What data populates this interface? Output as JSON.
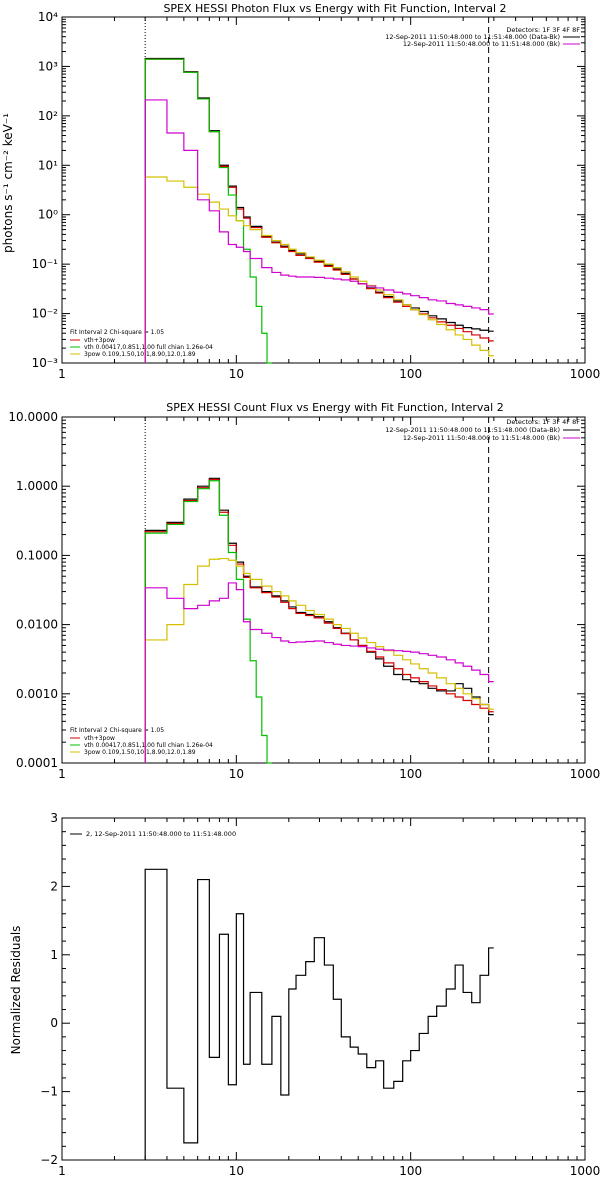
{
  "chart_data": [
    {
      "type": "line",
      "title": "SPEX HESSI Photon Flux vs Energy with Fit Function, Interval 2",
      "xlabel": "",
      "ylabel": "photons s⁻¹ cm⁻² keV⁻¹",
      "xscale": "log",
      "yscale": "log",
      "xlim": [
        1,
        1000
      ],
      "ylim": [
        0.001,
        10000
      ],
      "x_ticks": [
        "1",
        "10",
        "100",
        "1000"
      ],
      "y_ticks": [
        "10⁻³",
        "10⁻²",
        "10⁻¹",
        "10⁰",
        "10¹",
        "10²",
        "10³",
        "10⁴"
      ],
      "vlines": [
        {
          "x": 3.0,
          "style": "dotted"
        },
        {
          "x": 280,
          "style": "dashed"
        }
      ],
      "info_lines": [
        "Detectors: 1F 3F 4F 8F",
        "12-Sep-2011 11:50:48.000 to 11:51:48.000 (Data-Bk)",
        "12-Sep-2011 11:50:48.000 to 11:51:48.000 (Bk)"
      ],
      "legend_lines": [
        "Fit Interval 2   Chi-square = 1.05",
        "vth+3pow",
        "vth 0.00417,0.851,1.00  full chian 1.26e-04",
        "3pow 0.109,1.50,10.1,8.90,12.0,1.89"
      ],
      "series": [
        {
          "color": "#000000",
          "x": [
            3,
            4,
            5,
            6,
            7,
            8,
            9,
            10,
            11,
            12,
            14,
            16,
            18,
            20,
            22,
            25,
            28,
            32,
            36,
            40,
            45,
            50,
            56,
            63,
            70,
            80,
            90,
            100,
            112,
            126,
            141,
            160,
            180,
            200,
            224,
            250,
            280
          ],
          "values": [
            1450,
            1450,
            780,
            230,
            50,
            10,
            3.8,
            1.4,
            0.9,
            0.58,
            0.36,
            0.28,
            0.23,
            0.19,
            0.16,
            0.135,
            0.115,
            0.095,
            0.08,
            0.065,
            0.05,
            0.04,
            0.033,
            0.027,
            0.022,
            0.018,
            0.015,
            0.013,
            0.011,
            0.009,
            0.0078,
            0.0066,
            0.0058,
            0.0052,
            0.0049,
            0.0046,
            0.0044
          ]
        },
        {
          "color": "#d40000",
          "x": [
            3,
            4,
            5,
            6,
            7,
            8,
            9,
            10,
            11,
            12,
            14,
            16,
            18,
            20,
            22,
            25,
            28,
            32,
            36,
            40,
            45,
            50,
            56,
            63,
            70,
            80,
            90,
            100,
            112,
            126,
            141,
            160,
            180,
            200,
            224,
            250,
            280
          ],
          "values": [
            1400,
            1400,
            760,
            220,
            48,
            9.5,
            3.6,
            1.3,
            0.85,
            0.55,
            0.35,
            0.27,
            0.22,
            0.18,
            0.15,
            0.13,
            0.11,
            0.09,
            0.076,
            0.062,
            0.05,
            0.04,
            0.032,
            0.026,
            0.021,
            0.017,
            0.014,
            0.012,
            0.0098,
            0.0082,
            0.0068,
            0.0058,
            0.005,
            0.0043,
            0.0037,
            0.0032,
            0.0028
          ]
        },
        {
          "color": "#00c000",
          "x": [
            3,
            4,
            5,
            6,
            7,
            8,
            9,
            10,
            11,
            12,
            13,
            14,
            15
          ],
          "values": [
            1400,
            1400,
            760,
            220,
            48,
            9,
            2.5,
            0.75,
            0.2,
            0.055,
            0.014,
            0.004,
            0.001
          ]
        },
        {
          "color": "#d4c000",
          "x": [
            3,
            4,
            5,
            6,
            7,
            8,
            9,
            10,
            11,
            12,
            14,
            16,
            18,
            20,
            22,
            25,
            28,
            32,
            36,
            40,
            45,
            50,
            56,
            63,
            70,
            80,
            90,
            100,
            112,
            126,
            141,
            160,
            180,
            200,
            224,
            250,
            280
          ],
          "values": [
            5.8,
            4.8,
            3.6,
            2.6,
            1.8,
            1.3,
            0.95,
            0.75,
            0.6,
            0.5,
            0.38,
            0.3,
            0.25,
            0.2,
            0.17,
            0.14,
            0.12,
            0.1,
            0.085,
            0.07,
            0.055,
            0.045,
            0.037,
            0.03,
            0.024,
            0.019,
            0.015,
            0.012,
            0.0095,
            0.0075,
            0.006,
            0.0047,
            0.0037,
            0.003,
            0.0023,
            0.0018,
            0.0014
          ]
        },
        {
          "color": "#d000d0",
          "x": [
            3,
            4,
            5,
            6,
            7,
            8,
            9,
            10,
            11,
            12,
            14,
            16,
            18,
            20,
            22,
            25,
            28,
            32,
            36,
            40,
            45,
            50,
            56,
            63,
            70,
            80,
            90,
            100,
            112,
            126,
            141,
            160,
            180,
            200,
            224,
            250,
            280
          ],
          "values": [
            210,
            45,
            20,
            2.0,
            1.2,
            0.45,
            0.25,
            0.22,
            0.18,
            0.13,
            0.085,
            0.068,
            0.06,
            0.057,
            0.055,
            0.055,
            0.054,
            0.052,
            0.05,
            0.048,
            0.045,
            0.04,
            0.036,
            0.033,
            0.03,
            0.027,
            0.025,
            0.023,
            0.021,
            0.019,
            0.018,
            0.016,
            0.015,
            0.014,
            0.013,
            0.012,
            0.0098
          ]
        }
      ]
    },
    {
      "type": "line",
      "title": "SPEX HESSI Count Flux vs Energy with Fit Function, Interval 2",
      "xlabel": "",
      "ylabel": "",
      "xscale": "log",
      "yscale": "log",
      "xlim": [
        1,
        1000
      ],
      "ylim": [
        0.0001,
        10
      ],
      "x_ticks": [
        "1",
        "10",
        "100",
        "1000"
      ],
      "y_ticks": [
        "0.0001",
        "0.0010",
        "0.0100",
        "0.1000",
        "1.0000",
        "10.0000"
      ],
      "vlines": [
        {
          "x": 3.0,
          "style": "dotted"
        },
        {
          "x": 280,
          "style": "dashed"
        }
      ],
      "info_lines": [
        "Detectors: 1F 3F 4F 8F",
        "12-Sep-2011 11:50:48.000 to 11:51:48.000 (Data-Bk)",
        "12-Sep-2011 11:50:48.000 to 11:51:48.000 (Bk)"
      ],
      "legend_lines": [
        "Fit Interval 2   Chi-square = 1.05",
        "vth+3pow",
        "vth 0.00417,0.851,1.00  full chian 1.26e-04",
        "3pow 0.109,1.50,10.1,8.90,12.0,1.89"
      ],
      "series": [
        {
          "color": "#000000",
          "x": [
            3,
            4,
            5,
            6,
            7,
            8,
            9,
            10,
            11,
            12,
            14,
            16,
            18,
            20,
            22,
            25,
            28,
            32,
            36,
            40,
            45,
            50,
            56,
            63,
            70,
            80,
            90,
            100,
            112,
            126,
            141,
            160,
            180,
            200,
            224,
            250,
            280
          ],
          "values": [
            0.23,
            0.3,
            0.65,
            1.0,
            1.3,
            0.45,
            0.15,
            0.08,
            0.05,
            0.035,
            0.03,
            0.026,
            0.022,
            0.018,
            0.015,
            0.014,
            0.013,
            0.011,
            0.009,
            0.0075,
            0.006,
            0.005,
            0.004,
            0.0032,
            0.0025,
            0.0019,
            0.0016,
            0.0015,
            0.0014,
            0.0012,
            0.0011,
            0.0011,
            0.0014,
            0.0012,
            0.0009,
            0.0007,
            0.0005
          ]
        },
        {
          "color": "#d40000",
          "x": [
            3,
            4,
            5,
            6,
            7,
            8,
            9,
            10,
            11,
            12,
            14,
            16,
            18,
            20,
            22,
            25,
            28,
            32,
            36,
            40,
            45,
            50,
            56,
            63,
            70,
            80,
            90,
            100,
            112,
            126,
            141,
            160,
            180,
            200,
            224,
            250,
            280
          ],
          "values": [
            0.22,
            0.29,
            0.62,
            0.95,
            1.25,
            0.42,
            0.14,
            0.075,
            0.048,
            0.034,
            0.029,
            0.025,
            0.021,
            0.017,
            0.0145,
            0.0135,
            0.0125,
            0.0105,
            0.0088,
            0.0074,
            0.006,
            0.005,
            0.0041,
            0.0034,
            0.0028,
            0.0023,
            0.0019,
            0.0017,
            0.0015,
            0.0013,
            0.00115,
            0.001,
            0.0009,
            0.0008,
            0.0007,
            0.00062,
            0.00055
          ]
        },
        {
          "color": "#00c000",
          "x": [
            3,
            4,
            5,
            6,
            7,
            8,
            9,
            10,
            11,
            12,
            13,
            14,
            15
          ],
          "values": [
            0.21,
            0.28,
            0.6,
            0.92,
            1.2,
            0.38,
            0.11,
            0.045,
            0.012,
            0.003,
            0.0009,
            0.00025,
            0.0001
          ]
        },
        {
          "color": "#d4c000",
          "x": [
            3,
            4,
            5,
            6,
            7,
            8,
            9,
            10,
            11,
            12,
            14,
            16,
            18,
            20,
            22,
            25,
            28,
            32,
            36,
            40,
            45,
            50,
            56,
            63,
            70,
            80,
            90,
            100,
            112,
            126,
            141,
            160,
            180,
            200,
            224,
            250,
            280
          ],
          "values": [
            0.006,
            0.01,
            0.038,
            0.07,
            0.088,
            0.09,
            0.085,
            0.07,
            0.055,
            0.045,
            0.036,
            0.03,
            0.026,
            0.022,
            0.019,
            0.016,
            0.014,
            0.012,
            0.01,
            0.0088,
            0.0075,
            0.0064,
            0.0055,
            0.0048,
            0.0042,
            0.0036,
            0.0031,
            0.0027,
            0.0023,
            0.002,
            0.0017,
            0.0014,
            0.0012,
            0.001,
            0.00085,
            0.0007,
            0.0006
          ]
        },
        {
          "color": "#d000d0",
          "x": [
            3,
            4,
            5,
            6,
            7,
            8,
            9,
            10,
            11,
            12,
            14,
            16,
            18,
            20,
            22,
            25,
            28,
            32,
            36,
            40,
            45,
            50,
            56,
            63,
            70,
            80,
            90,
            100,
            112,
            126,
            141,
            160,
            180,
            200,
            224,
            250,
            280
          ],
          "values": [
            0.034,
            0.024,
            0.017,
            0.019,
            0.022,
            0.024,
            0.04,
            0.032,
            0.011,
            0.0085,
            0.0075,
            0.0065,
            0.0058,
            0.0055,
            0.0056,
            0.0057,
            0.0058,
            0.0055,
            0.0052,
            0.005,
            0.0049,
            0.0048,
            0.0046,
            0.0044,
            0.0043,
            0.0042,
            0.0041,
            0.004,
            0.0038,
            0.0036,
            0.0034,
            0.0031,
            0.0028,
            0.0025,
            0.0022,
            0.0019,
            0.0015
          ]
        }
      ]
    },
    {
      "type": "line",
      "title": "",
      "xlabel": "",
      "ylabel": "Normalized Residuals",
      "xscale": "log",
      "yscale": "linear",
      "xlim": [
        1,
        1000
      ],
      "ylim": [
        -2,
        3
      ],
      "x_ticks": [
        "1",
        "10",
        "100",
        "1000"
      ],
      "y_ticks": [
        "−2",
        "−1",
        "0",
        "1",
        "2",
        "3"
      ],
      "legend_lines": [
        "2, 12-Sep-2011 11:50:48.000 to 11:51:48.000"
      ],
      "series": [
        {
          "color": "#000000",
          "x": [
            3,
            4,
            5,
            6,
            7,
            8,
            9,
            10,
            11,
            12,
            14,
            16,
            18,
            20,
            22,
            25,
            28,
            32,
            36,
            40,
            45,
            50,
            56,
            63,
            70,
            80,
            90,
            100,
            112,
            126,
            141,
            160,
            180,
            200,
            224,
            250,
            280
          ],
          "values": [
            2.25,
            -0.95,
            -1.75,
            2.1,
            -0.5,
            1.3,
            -0.9,
            1.6,
            -0.6,
            0.45,
            -0.6,
            0.1,
            -1.05,
            0.5,
            0.7,
            0.9,
            1.25,
            0.85,
            0.35,
            -0.2,
            -0.35,
            -0.45,
            -0.65,
            -0.55,
            -0.95,
            -0.85,
            -0.55,
            -0.4,
            -0.15,
            0.1,
            0.25,
            0.5,
            0.85,
            0.45,
            0.3,
            0.7,
            1.1
          ]
        }
      ]
    }
  ]
}
